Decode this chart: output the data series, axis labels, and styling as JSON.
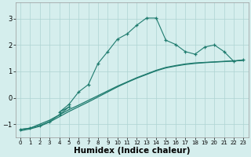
{
  "bg_color": "#d5eeed",
  "grid_color": "#aed4d2",
  "line_color": "#1e7b6e",
  "xlabel": "Humidex (Indice chaleur)",
  "xlabel_fontsize": 7.5,
  "xlim": [
    -0.5,
    23.5
  ],
  "ylim": [
    -1.5,
    3.6
  ],
  "yticks": [
    -1,
    0,
    1,
    2,
    3
  ],
  "xticks": [
    0,
    1,
    2,
    3,
    4,
    5,
    6,
    7,
    8,
    9,
    10,
    11,
    12,
    13,
    14,
    15,
    16,
    17,
    18,
    19,
    20,
    21,
    22,
    23
  ],
  "s1_x": [
    0,
    1,
    2,
    3,
    4,
    5,
    6,
    7,
    8,
    9,
    10,
    11,
    12,
    13,
    14,
    15,
    16,
    17,
    18,
    19,
    20,
    21,
    22,
    23
  ],
  "s1_y": [
    -1.2,
    -1.15,
    -1.0,
    -0.85,
    -0.65,
    -0.45,
    -0.28,
    -0.1,
    0.08,
    0.26,
    0.44,
    0.6,
    0.76,
    0.9,
    1.04,
    1.15,
    1.22,
    1.28,
    1.32,
    1.34,
    1.36,
    1.38,
    1.4,
    1.42
  ],
  "s2_x": [
    0,
    1,
    2,
    3,
    4,
    5,
    6,
    7,
    8,
    9,
    10,
    11,
    12,
    13,
    14,
    15,
    16,
    17,
    18,
    19,
    20,
    21,
    22,
    23
  ],
  "s2_y": [
    -1.25,
    -1.18,
    -1.08,
    -0.92,
    -0.72,
    -0.52,
    -0.34,
    -0.16,
    0.03,
    0.22,
    0.41,
    0.58,
    0.74,
    0.88,
    1.02,
    1.13,
    1.2,
    1.26,
    1.3,
    1.33,
    1.35,
    1.37,
    1.39,
    1.42
  ],
  "s3_x": [
    0,
    1,
    2,
    3,
    4,
    5,
    4,
    5,
    6,
    7,
    8,
    9,
    10,
    11,
    12,
    13,
    14,
    15,
    16,
    17,
    18,
    19,
    20,
    21,
    22,
    23
  ],
  "s3_y": [
    -1.2,
    -1.15,
    -1.05,
    -0.9,
    -0.65,
    -0.35,
    -0.55,
    -0.25,
    0.22,
    0.5,
    1.3,
    1.75,
    2.22,
    2.42,
    2.75,
    3.02,
    3.02,
    2.18,
    2.02,
    1.75,
    1.65,
    1.92,
    2.0,
    1.75,
    1.38,
    1.44
  ]
}
